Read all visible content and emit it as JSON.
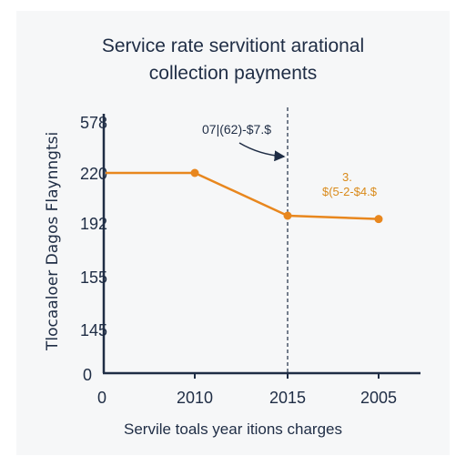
{
  "chart_data": {
    "type": "line",
    "title_lines": [
      "Service rate servitiont arational",
      "collection payments"
    ],
    "xlabel": "Servile toals year itions charges",
    "ylabel": "Tlocaaloer Dagos Flaynngtsi",
    "x_tick_labels": [
      "0",
      "2010",
      "2015",
      "2005"
    ],
    "y_tick_labels": [
      "0",
      "145",
      "155",
      "192",
      "220",
      "578"
    ],
    "series": [
      {
        "color": "#e8871e",
        "points": [
          {
            "x": "",
            "y": 220
          },
          {
            "x": "2010",
            "y": 220
          },
          {
            "x": "2015",
            "y": 192
          },
          {
            "x": "2005",
            "y": 190
          }
        ]
      }
    ],
    "reference_line": {
      "x": "2015",
      "style": "dashed"
    },
    "annotations": [
      {
        "text": "07|(62)-$7.$",
        "color": "#1f2d45",
        "arrow_to": "2015"
      },
      {
        "text": "$(5-2-$4.$",
        "superscript": "3.",
        "color": "#d98a1a"
      }
    ],
    "grid": false,
    "legend": "none"
  }
}
